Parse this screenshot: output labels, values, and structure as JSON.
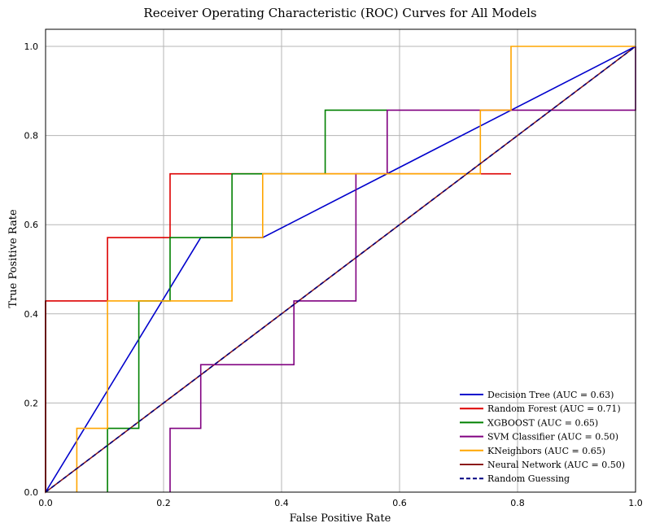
{
  "chart_data": {
    "type": "line",
    "title": "Receiver Operating Characteristic (ROC) Curves for All Models",
    "xlabel": "False Positive Rate",
    "ylabel": "True Positive Rate",
    "xlim": [
      0,
      1
    ],
    "ylim": [
      0,
      1
    ],
    "xticks": [
      "0.0",
      "0.2",
      "0.4",
      "0.6",
      "0.8",
      "1.0"
    ],
    "yticks": [
      "0.0",
      "0.2",
      "0.4",
      "0.6",
      "0.8",
      "1.0"
    ],
    "grid": true,
    "legend_position": "bottom-right",
    "series": [
      {
        "name": "Decision Tree (AUC = 0.63)",
        "color": "#0000cc",
        "style": "solid",
        "x": [
          0,
          0.263,
          0.368,
          1
        ],
        "y": [
          0,
          0.571,
          0.571,
          1
        ]
      },
      {
        "name": "Random Forest (AUC = 0.71)",
        "color": "#dd0000",
        "style": "solid",
        "x": [
          0,
          0,
          0.105,
          0.105,
          0.211,
          0.211,
          0.789
        ],
        "y": [
          0,
          0.429,
          0.429,
          0.571,
          0.571,
          0.714,
          0.714
        ]
      },
      {
        "name": "XGBOOST (AUC = 0.65)",
        "color": "#008000",
        "style": "solid",
        "x": [
          0.105,
          0.105,
          0.158,
          0.158,
          0.211,
          0.211,
          0.316,
          0.316,
          0.474,
          0.474,
          0.579
        ],
        "y": [
          0,
          0.143,
          0.143,
          0.429,
          0.429,
          0.571,
          0.571,
          0.714,
          0.714,
          0.857,
          0.857
        ]
      },
      {
        "name": "SVM Classifier (AUC = 0.50)",
        "color": "#800080",
        "style": "solid",
        "x": [
          0.211,
          0.211,
          0.263,
          0.263,
          0.421,
          0.421,
          0.526,
          0.526,
          0.579,
          0.579,
          1,
          1
        ],
        "y": [
          0,
          0.143,
          0.143,
          0.286,
          0.286,
          0.429,
          0.429,
          0.714,
          0.714,
          0.857,
          0.857,
          1
        ]
      },
      {
        "name": "KNeighbors (AUC = 0.65)",
        "color": "#ffa500",
        "style": "solid",
        "x": [
          0.053,
          0.053,
          0.105,
          0.105,
          0.316,
          0.316,
          0.368,
          0.368,
          0.737,
          0.737,
          0.789,
          0.789,
          1
        ],
        "y": [
          0,
          0.143,
          0.143,
          0.429,
          0.429,
          0.571,
          0.571,
          0.714,
          0.714,
          0.857,
          0.857,
          1,
          1
        ]
      },
      {
        "name": "Neural Network (AUC = 0.50)",
        "color": "#8b1a1a",
        "style": "solid",
        "x": [
          0,
          0,
          0,
          1
        ],
        "y": [
          0,
          0.429,
          0,
          1
        ]
      },
      {
        "name": "Random Guessing",
        "color": "#000080",
        "style": "dashed",
        "x": [
          0,
          1
        ],
        "y": [
          0,
          1
        ]
      }
    ]
  }
}
